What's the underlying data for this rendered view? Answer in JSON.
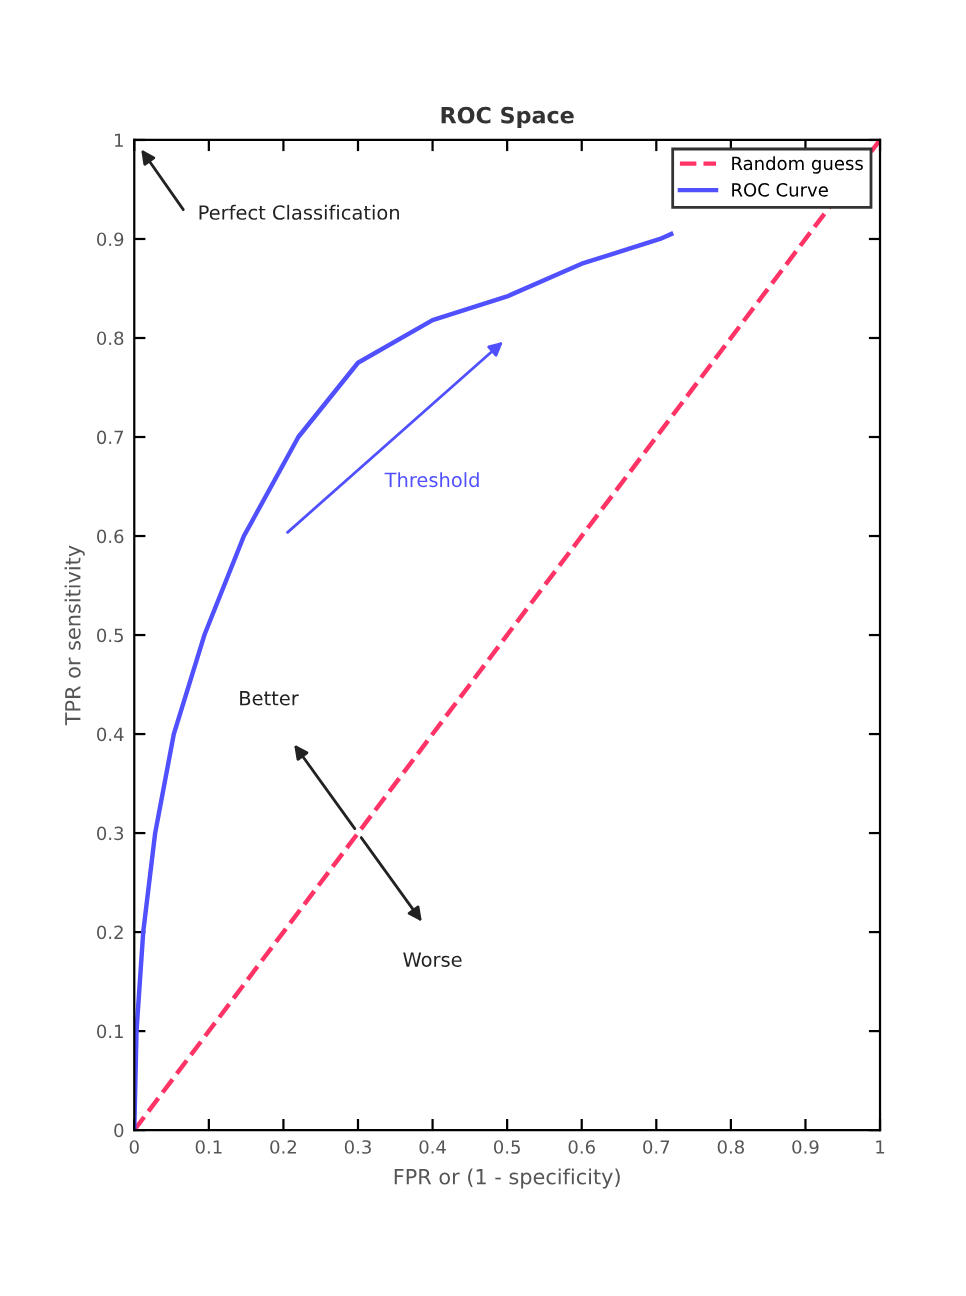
{
  "chart_data": {
    "type": "line",
    "title": "ROC Space",
    "xlabel": "FPR or (1 - specificity)",
    "ylabel": "TPR or sensitivity",
    "xlim": [
      0,
      1
    ],
    "ylim": [
      0,
      1
    ],
    "xticks": [
      0,
      0.1,
      0.2,
      0.3,
      0.4,
      0.5,
      0.6,
      0.7,
      0.8,
      0.9,
      1
    ],
    "yticks": [
      0,
      0.1,
      0.2,
      0.3,
      0.4,
      0.5,
      0.6,
      0.7,
      0.8,
      0.9,
      1
    ],
    "grid": false,
    "legend": "top right",
    "marker": "none",
    "series": [
      {
        "name": "Random guess",
        "color": "#ff3366",
        "line_style": "dashed",
        "x": [
          0,
          1
        ],
        "values": [
          0,
          1
        ]
      },
      {
        "name": "ROC Curve",
        "color": "#5050ff",
        "line_style": "solid",
        "x": [
          0,
          0.003,
          0.012,
          0.028,
          0.053,
          0.094,
          0.147,
          0.22,
          0.3,
          0.4,
          0.5,
          0.6,
          0.705,
          0.72
        ],
        "values": [
          0,
          0.1,
          0.2,
          0.3,
          0.4,
          0.5,
          0.6,
          0.7,
          0.775,
          0.818,
          0.842,
          0.875,
          0.9,
          0.905
        ]
      }
    ],
    "annotations": [
      "Perfect Classification",
      "Threshold",
      "Better",
      "Worse"
    ]
  }
}
